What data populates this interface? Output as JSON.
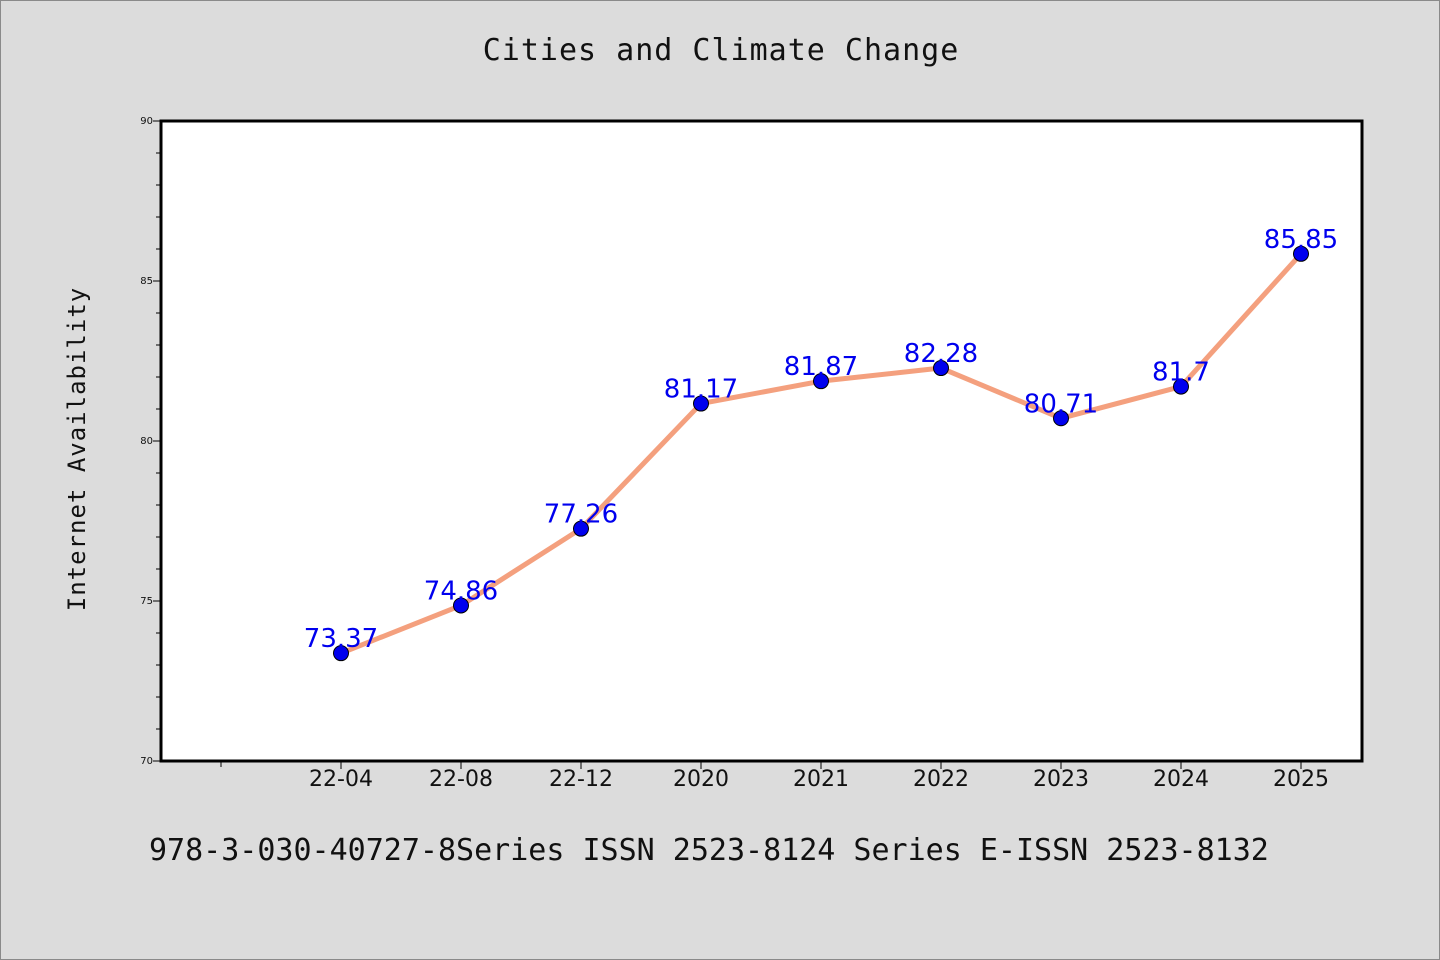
{
  "chart_data": {
    "type": "line",
    "title": "Cities and Climate Change",
    "xlabel": "",
    "ylabel": "Internet Availability",
    "categories": [
      "22-04",
      "22-08",
      "22-12",
      "2020",
      "2021",
      "2022",
      "2023",
      "2024",
      "2025"
    ],
    "series": [
      {
        "values": [
          73.37,
          74.86,
          77.26,
          81.17,
          81.87,
          82.28,
          80.71,
          81.7,
          85.85
        ]
      }
    ],
    "data_labels": [
      "73.37",
      "74.86",
      "77.26",
      "81.17",
      "81.87",
      "82.28",
      "80.71",
      "81.7",
      "85.85"
    ],
    "ylim": [
      70,
      90
    ],
    "yticks": [
      70,
      75,
      80,
      85,
      90
    ],
    "grid": false,
    "line_color": "#f4a07e",
    "marker_color": "#0000ee",
    "label_color": "#0000ee"
  },
  "footer": {
    "text": "978-3-030-40727-8Series ISSN 2523-8124 Series E-ISSN 2523-8132"
  }
}
